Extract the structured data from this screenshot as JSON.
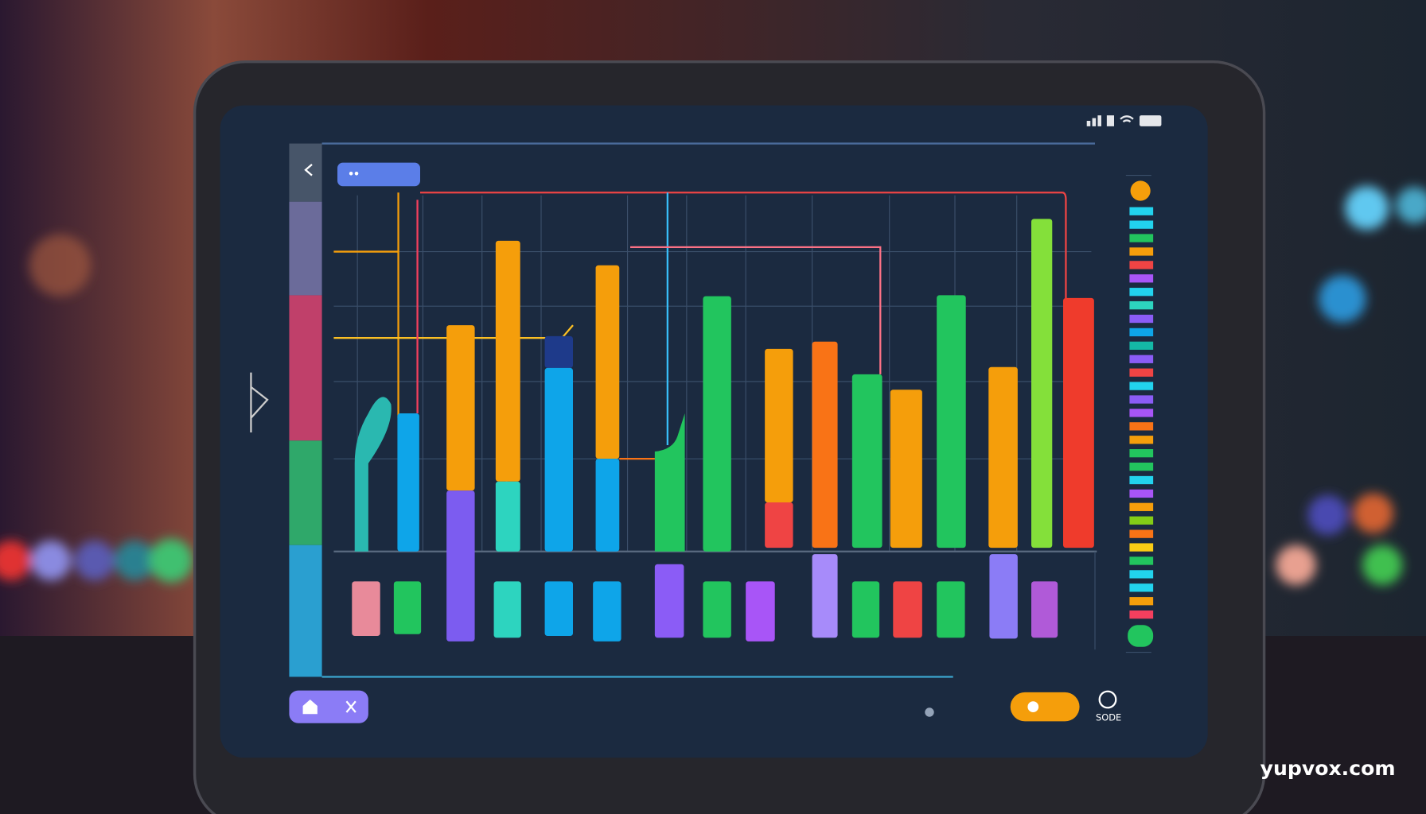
{
  "status_label": "SODE",
  "watermark": "yupvox.com"
}
